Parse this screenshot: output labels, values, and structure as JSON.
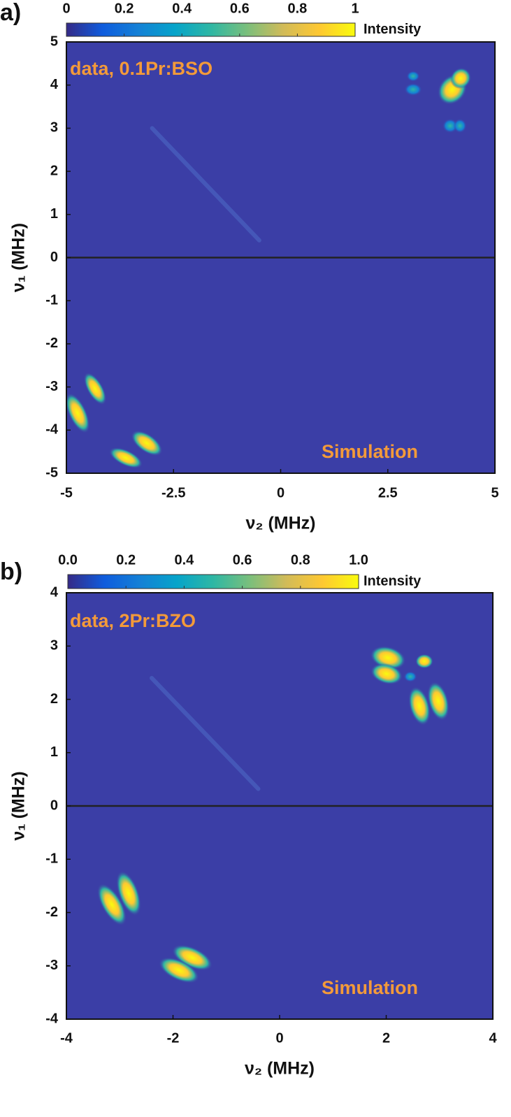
{
  "chart_data": [
    {
      "type": "heatmap",
      "panel_label": "a)",
      "annotations": [
        "data, 0.1Pr:BSO",
        "Simulation"
      ],
      "xlabel": "ν₂ (MHz)",
      "ylabel": "ν₁ (MHz)",
      "xlim": [
        -5,
        5
      ],
      "ylim": [
        -5,
        5
      ],
      "xticks": [
        -5,
        -2.5,
        0,
        2.5,
        5
      ],
      "yticks": [
        5,
        4,
        3,
        2,
        1,
        0,
        -1,
        -2,
        -3,
        -4,
        -5
      ],
      "hline": 0,
      "background": "#3b3ea6",
      "colorbar": {
        "label": "Intensity",
        "lim": [
          0,
          1
        ],
        "ticks": [
          0,
          0.2,
          0.4,
          0.6,
          0.8,
          1
        ],
        "colormap": [
          "#352a87",
          "#0f5cdd",
          "#1481d6",
          "#06a4ca",
          "#2eb7a4",
          "#7abf7c",
          "#d1bb59",
          "#fec832",
          "#f9fb0e"
        ]
      }
    },
    {
      "type": "heatmap",
      "panel_label": "b)",
      "annotations": [
        "data, 2Pr:BZO",
        "Simulation"
      ],
      "xlabel": "ν₂ (MHz)",
      "ylabel": "ν₁ (MHz)",
      "xlim": [
        -4,
        4
      ],
      "ylim": [
        -4,
        4
      ],
      "xticks": [
        -4,
        -2,
        0,
        2,
        4
      ],
      "yticks": [
        4,
        3,
        2,
        1,
        0,
        -1,
        -2,
        -3,
        -4
      ],
      "hline": 0,
      "background": "#3b3ea6",
      "colorbar": {
        "label": "Intensity",
        "lim": [
          0,
          1
        ],
        "ticks": [
          {
            "value": 0,
            "label": "0.0"
          },
          {
            "value": 0.2,
            "label": "0.2"
          },
          {
            "value": 0.4,
            "label": "0.4"
          },
          {
            "value": 0.6,
            "label": "0.6"
          },
          {
            "value": 0.8,
            "label": "0.8"
          },
          {
            "value": 1,
            "label": "1.0"
          }
        ],
        "colormap": [
          "#352a87",
          "#0f5cdd",
          "#1481d6",
          "#06a4ca",
          "#2eb7a4",
          "#7abf7c",
          "#d1bb59",
          "#fec832",
          "#f9fb0e"
        ]
      }
    }
  ]
}
